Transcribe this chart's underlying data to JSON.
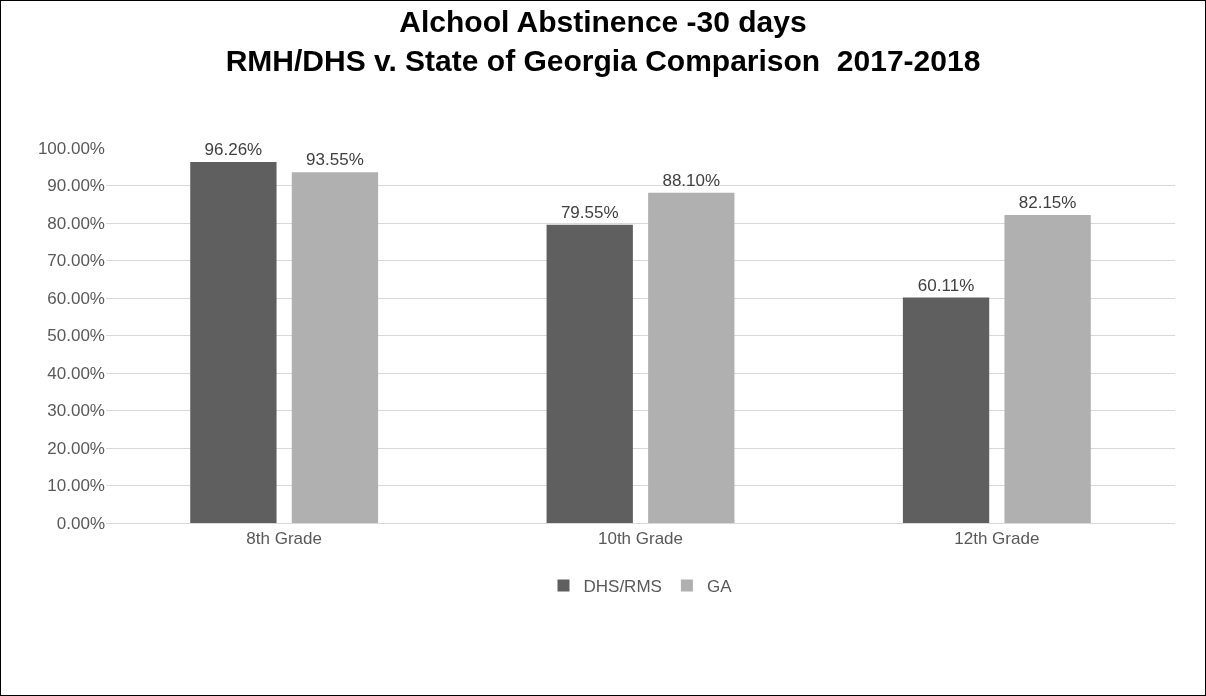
{
  "chart_data": {
    "type": "bar",
    "title": "Alchool Abstinence -30 days\nRMH/DHS v. State of Georgia Comparison  2017-2018",
    "categories": [
      "8th Grade",
      "10th Grade",
      "12th Grade"
    ],
    "series": [
      {
        "name": "DHS/RMS",
        "color": "#5f5f5f",
        "values": [
          96.26,
          79.55,
          60.11
        ],
        "value_labels": [
          "96.26%",
          "79.55%",
          "60.11%"
        ]
      },
      {
        "name": "GA",
        "color": "#b0b0b0",
        "values": [
          93.55,
          88.1,
          82.15
        ],
        "value_labels": [
          "93.55%",
          "88.10%",
          "82.15%"
        ]
      }
    ],
    "ylim": [
      0,
      100
    ],
    "yticks": [
      {
        "value": 0,
        "label": "0.00%"
      },
      {
        "value": 10,
        "label": "10.00%"
      },
      {
        "value": 20,
        "label": "20.00%"
      },
      {
        "value": 30,
        "label": "30.00%"
      },
      {
        "value": 40,
        "label": "40.00%"
      },
      {
        "value": 50,
        "label": "50.00%"
      },
      {
        "value": 60,
        "label": "60.00%"
      },
      {
        "value": 70,
        "label": "70.00%"
      },
      {
        "value": 80,
        "label": "80.00%"
      },
      {
        "value": 90,
        "label": "90.00%"
      },
      {
        "value": 100,
        "label": "100.00%"
      }
    ],
    "grid": "y",
    "legend": "bottom"
  }
}
